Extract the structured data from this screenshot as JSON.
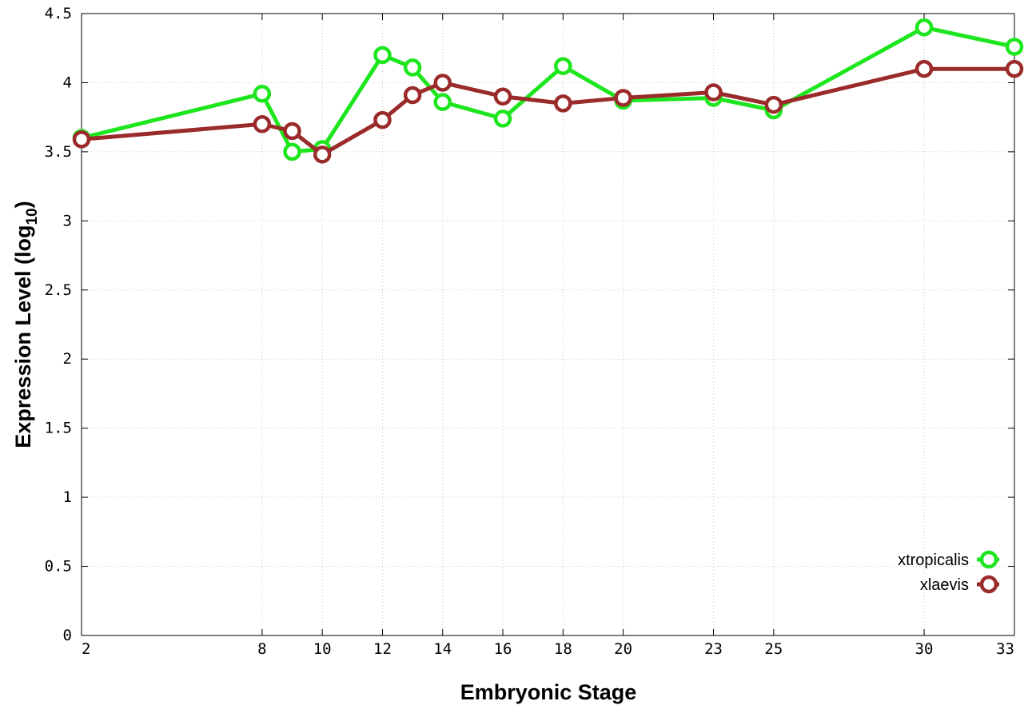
{
  "chart_data": {
    "type": "line",
    "title": "",
    "xlabel": "Embryonic Stage",
    "ylabel_main": "Expression Level (log",
    "ylabel_sub": "10",
    "ylabel_close": ")",
    "x": [
      2,
      8,
      9,
      10,
      12,
      13,
      14,
      16,
      18,
      20,
      23,
      25,
      30,
      33
    ],
    "x_ticks": [
      2,
      8,
      10,
      12,
      14,
      16,
      18,
      20,
      23,
      25,
      30,
      33
    ],
    "x_tick_labels": [
      "2",
      "8",
      "10",
      "12",
      "14",
      "16",
      "18",
      "20",
      "23",
      "25",
      "30",
      "33"
    ],
    "xlim": [
      2,
      33
    ],
    "ylim": [
      0,
      4.5
    ],
    "y_ticks": [
      0,
      0.5,
      1,
      1.5,
      2,
      2.5,
      3,
      3.5,
      4,
      4.5
    ],
    "y_tick_labels": [
      "0",
      "0.5",
      "1",
      "1.5",
      "2",
      "2.5",
      "3",
      "3.5",
      "4",
      "4.5"
    ],
    "grid": true,
    "legend_position": "bottom-right",
    "series": [
      {
        "name": "xtropicalis",
        "color": "#1ee61e",
        "values": [
          3.6,
          3.92,
          3.5,
          3.52,
          4.2,
          4.11,
          3.86,
          3.74,
          4.12,
          3.87,
          3.89,
          3.8,
          4.4,
          4.26
        ]
      },
      {
        "name": "xlaevis",
        "color": "#9b2b2b",
        "values": [
          3.59,
          3.7,
          3.65,
          3.48,
          3.73,
          3.91,
          4.0,
          3.9,
          3.85,
          3.89,
          3.93,
          3.84,
          4.1,
          4.1
        ]
      }
    ]
  }
}
